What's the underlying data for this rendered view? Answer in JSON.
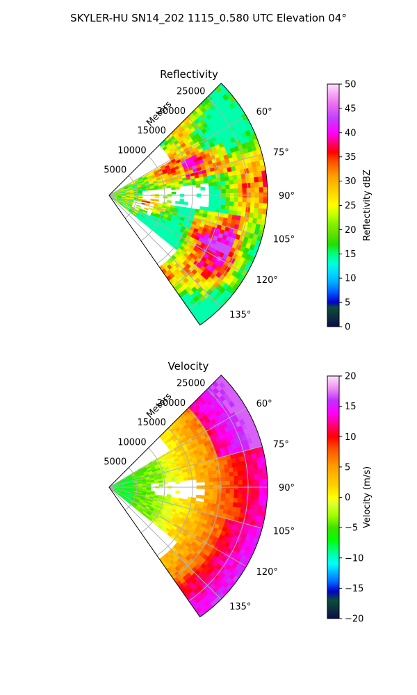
{
  "figure": {
    "suptitle": "SKYLER-HU  SN14_202  1115_0.580 UTC Elevation 04°"
  },
  "chart_data": [
    {
      "type": "heatmap",
      "title": "Reflectivity",
      "projection": "polar-sector",
      "azimuth_range_deg": [
        45,
        145
      ],
      "range_max_m": 28500,
      "radial_label": "Meters",
      "radial_ticks": [
        5000,
        10000,
        15000,
        20000,
        25000
      ],
      "radial_tick_labels": [
        "5000",
        "10000",
        "15000",
        "20000",
        "25000"
      ],
      "azimuth_ticks": [
        60,
        75,
        90,
        105,
        120,
        135
      ],
      "azimuth_tick_labels": [
        "60°",
        "75°",
        "90°",
        "105°",
        "120°",
        "135°"
      ],
      "grid": true,
      "colorbar": {
        "label": "Reflectivity dBZ",
        "vmin": 0,
        "vmax": 50,
        "ticks": [
          0,
          5,
          10,
          15,
          20,
          25,
          30,
          35,
          40,
          45,
          50
        ],
        "tick_labels": [
          "0",
          "5",
          "10",
          "15",
          "20",
          "25",
          "30",
          "35",
          "40",
          "45",
          "50"
        ],
        "color_stops": [
          {
            "v": 0,
            "c": "#0a0a50"
          },
          {
            "v": 2,
            "c": "#0d2f3d"
          },
          {
            "v": 4,
            "c": "#0b4d3a"
          },
          {
            "v": 5,
            "c": "#0000c8"
          },
          {
            "v": 7,
            "c": "#0055ff"
          },
          {
            "v": 9,
            "c": "#00a8ff"
          },
          {
            "v": 11,
            "c": "#00d8ff"
          },
          {
            "v": 13,
            "c": "#00ffd8"
          },
          {
            "v": 15,
            "c": "#00ff80"
          },
          {
            "v": 17,
            "c": "#20e000"
          },
          {
            "v": 19,
            "c": "#60e000"
          },
          {
            "v": 21,
            "c": "#80f000"
          },
          {
            "v": 23,
            "c": "#c0ff00"
          },
          {
            "v": 25,
            "c": "#ffff00"
          },
          {
            "v": 28,
            "c": "#ffd000"
          },
          {
            "v": 31,
            "c": "#ffa000"
          },
          {
            "v": 34,
            "c": "#ff5000"
          },
          {
            "v": 36,
            "c": "#ff0000"
          },
          {
            "v": 38,
            "c": "#ff0080"
          },
          {
            "v": 40,
            "c": "#ff00ff"
          },
          {
            "v": 43,
            "c": "#c040ff"
          },
          {
            "v": 46,
            "c": "#ee70ee"
          },
          {
            "v": 50,
            "c": "#ffe0ff"
          }
        ]
      }
    },
    {
      "type": "heatmap",
      "title": "Velocity",
      "projection": "polar-sector",
      "azimuth_range_deg": [
        45,
        145
      ],
      "range_max_m": 28500,
      "radial_label": "Meters",
      "radial_ticks": [
        5000,
        10000,
        15000,
        20000,
        25000
      ],
      "radial_tick_labels": [
        "5000",
        "10000",
        "15000",
        "20000",
        "25000"
      ],
      "azimuth_ticks": [
        60,
        75,
        90,
        105,
        120,
        135
      ],
      "azimuth_tick_labels": [
        "60°",
        "75°",
        "90°",
        "105°",
        "120°",
        "135°"
      ],
      "grid": true,
      "colorbar": {
        "label": "Velocity (m/s)",
        "vmin": -20,
        "vmax": 20,
        "ticks": [
          -20,
          -15,
          -10,
          -5,
          0,
          5,
          10,
          15,
          20
        ],
        "tick_labels": [
          "−20",
          "−15",
          "−10",
          "−5",
          "0",
          "5",
          "10",
          "15",
          "20"
        ],
        "color_stops": [
          {
            "v": -20,
            "c": "#0a0a50"
          },
          {
            "v": -18.5,
            "c": "#0d2f3d"
          },
          {
            "v": -17,
            "c": "#0b4d3a"
          },
          {
            "v": -15.5,
            "c": "#0000c8"
          },
          {
            "v": -14,
            "c": "#0066ff"
          },
          {
            "v": -12.5,
            "c": "#00b0ff"
          },
          {
            "v": -11,
            "c": "#00ffff"
          },
          {
            "v": -9,
            "c": "#00ff90"
          },
          {
            "v": -7,
            "c": "#00ff00"
          },
          {
            "v": -5,
            "c": "#40e000"
          },
          {
            "v": -3,
            "c": "#a0ff00"
          },
          {
            "v": -1,
            "c": "#e0ff30"
          },
          {
            "v": 0,
            "c": "#ffff00"
          },
          {
            "v": 2,
            "c": "#ffd000"
          },
          {
            "v": 5,
            "c": "#ffa000"
          },
          {
            "v": 8,
            "c": "#ff5000"
          },
          {
            "v": 10,
            "c": "#ff0000"
          },
          {
            "v": 12,
            "c": "#ff0080"
          },
          {
            "v": 14,
            "c": "#ff00ff"
          },
          {
            "v": 16,
            "c": "#c030ff"
          },
          {
            "v": 18,
            "c": "#f090f0"
          },
          {
            "v": 20,
            "c": "#ffe4ff"
          }
        ]
      }
    }
  ]
}
